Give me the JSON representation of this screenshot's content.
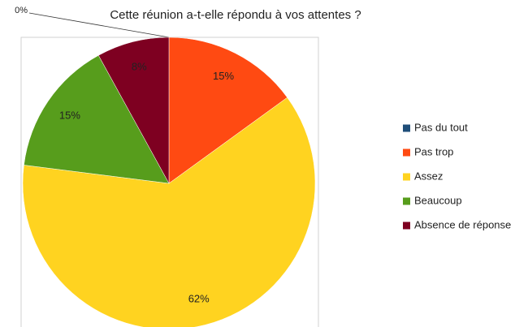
{
  "chart_data": {
    "type": "pie",
    "title": "Cette réunion a-t-elle répondu à vos attentes ?",
    "categories": [
      "Pas du tout",
      "Pas trop",
      "Assez",
      "Beaucoup",
      "Absence de réponse"
    ],
    "values": [
      0,
      15,
      62,
      15,
      8
    ],
    "value_labels": [
      "0%",
      "15%",
      "62%",
      "15%",
      "8%"
    ],
    "colors": [
      "#1f4e79",
      "#ff4a12",
      "#ffd320",
      "#579d1c",
      "#7e0021"
    ],
    "legend": "right"
  }
}
